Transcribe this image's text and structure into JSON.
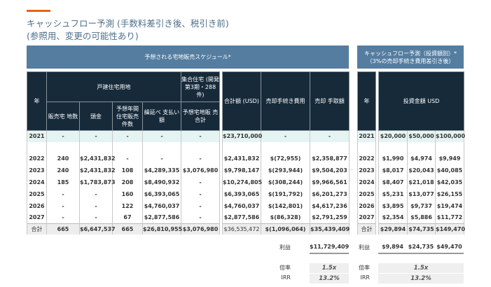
{
  "title_line1": "キャッシュフロー予測 (手数料差引き後、税引き前)",
  "title_line2": "(参照用、変更の可能性あり)",
  "left": {
    "band": "予想される宅地販売スケジュール*",
    "h_year": "年",
    "h_detached": "戸建住宅用地",
    "h_collective": "集合住宅 (開発第3期・288件)",
    "h_total": "合計額 (USD)",
    "h_fee": "売却手続き費用",
    "h_net": "売却 手取額",
    "sub": [
      "販売宅 地数",
      "頭金",
      "予想年間 住宅販売 件数",
      "繰延べ 支払い額",
      "予想宅地販 売合計"
    ],
    "rows": [
      [
        "2021",
        "-",
        "-",
        "-",
        "-",
        "-",
        "$23,710,000",
        "-",
        "-"
      ],
      [
        "2022",
        "240",
        "$2,431,832",
        "-",
        "-",
        "-",
        "$2,431,832",
        "$(72,955)",
        "$2,358,877"
      ],
      [
        "2023",
        "240",
        "$2,431,832",
        "108",
        "$4,289,335",
        "$3,076,980",
        "$9,798,147",
        "$(293,944)",
        "$9,504,203"
      ],
      [
        "2024",
        "185",
        "$1,783,873",
        "208",
        "$8,490,932",
        "-",
        "$10,274,805",
        "$(308,244)",
        "$9,966,561"
      ],
      [
        "2025",
        "-",
        "-",
        "160",
        "$6,393,065",
        "-",
        "$6,393,065",
        "$(191,792)",
        "$6,201,273"
      ],
      [
        "2026",
        "-",
        "-",
        "122",
        "$4,760,037",
        "-",
        "$4,760,037",
        "$(142,801)",
        "$4,617,236"
      ],
      [
        "2027",
        "-",
        "-",
        "67",
        "$2,877,586",
        "-",
        "$2,877,586",
        "$(86,328)",
        "$2,791,259"
      ]
    ],
    "total": [
      "合計",
      "665",
      "$6,647,537",
      "665",
      "$26,810,955",
      "$3,076,980",
      "$36,535,472",
      "$(1,096,064)",
      "$35,439,409"
    ],
    "profit_label": "利益",
    "profit": "$11,729,409",
    "multiple_label": "倍率",
    "multiple": "1.5x",
    "irr_label": "IRR",
    "irr": "13.2%"
  },
  "right": {
    "band": "キャッシュフロー予測（投資額別）* （3%の売却手続き費用差引き後）",
    "h_year": "年",
    "h_invest": "投資金額 USD",
    "rows": [
      [
        "2021",
        "$20,000",
        "$50,000",
        "$100,000"
      ],
      [
        "2022",
        "$1,990",
        "$4,974",
        "$9,949"
      ],
      [
        "2023",
        "$8,017",
        "$20,043",
        "$40,085"
      ],
      [
        "2024",
        "$8,407",
        "$21,018",
        "$42,035"
      ],
      [
        "2025",
        "$5,231",
        "$13,077",
        "$26,155"
      ],
      [
        "2026",
        "$3,895",
        "$9,737",
        "$19,474"
      ],
      [
        "2027",
        "$2,354",
        "$5,886",
        "$11,772"
      ]
    ],
    "total": [
      "合計",
      "$29,894",
      "$74,735",
      "$149,470"
    ],
    "profit_label": "利益",
    "profit": [
      "$9,894",
      "$24,735",
      "$49,470"
    ],
    "multiple_label": "倍率",
    "multiple": "1.5x",
    "irr_label": "IRR",
    "irr": "13.2%"
  },
  "ellipsis": "...",
  "colors": {
    "accent": "#e8611a",
    "band": "#557da0",
    "header": "#172a3a",
    "first_row": "#e5f4f3"
  }
}
